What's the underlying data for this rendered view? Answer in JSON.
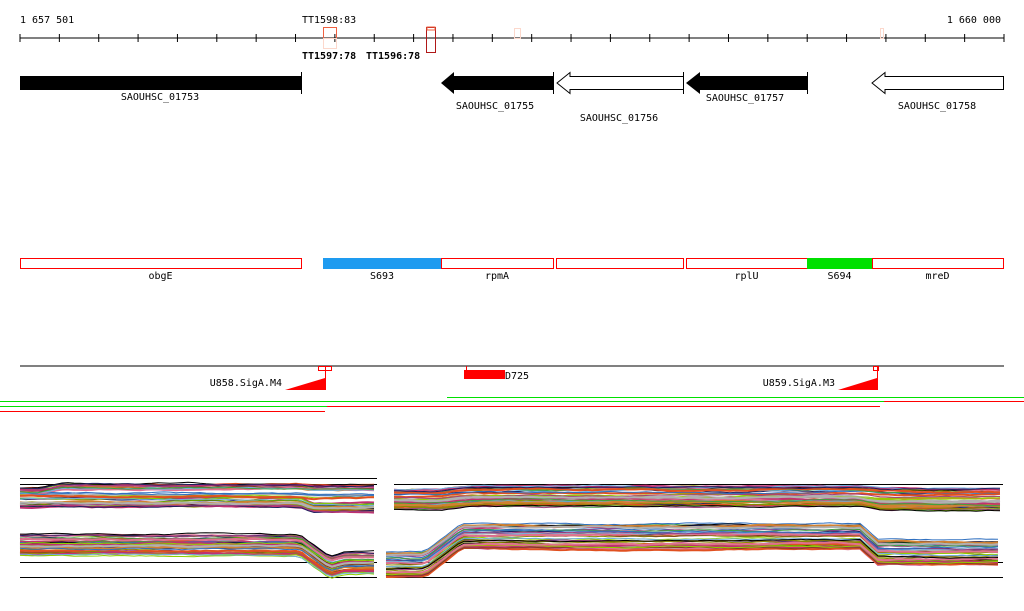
{
  "ruler": {
    "start": "1 657 501",
    "end": "1 660 000",
    "marker_top": "TT1598:83",
    "marker_bottom_a": "TT1597:78",
    "marker_bottom_b": "TT1596:78"
  },
  "genes": [
    {
      "name": "SAOUHSC_01753",
      "strand": "none",
      "fill": "black"
    },
    {
      "name": "SAOUHSC_01755",
      "strand": "minus",
      "fill": "black"
    },
    {
      "name": "SAOUHSC_01756",
      "strand": "minus",
      "fill": "white"
    },
    {
      "name": "SAOUHSC_01757",
      "strand": "minus",
      "fill": "black"
    },
    {
      "name": "SAOUHSC_01758",
      "strand": "minus",
      "fill": "white"
    }
  ],
  "segments": [
    {
      "label": "obgE",
      "color": "#ffffff"
    },
    {
      "label": "S693",
      "color": "#1e9bf0"
    },
    {
      "label": "rpmA",
      "color": "#ffffff"
    },
    {
      "label": "",
      "color": "#ffffff"
    },
    {
      "label": "rplU",
      "color": "#ffffff"
    },
    {
      "label": "S694",
      "color": "#00e000"
    },
    {
      "label": "mreD",
      "color": "#ffffff"
    }
  ],
  "promoters": [
    {
      "label": "U858.SigA.M4"
    },
    {
      "label": "U859.SigA.M3"
    }
  ],
  "terminator": {
    "label": "D725"
  },
  "colors": {
    "accent_red": "#ff0000",
    "green": "#00e000",
    "blue": "#1e9bf0"
  },
  "profile_palette": [
    "#e05020",
    "#8a8a00",
    "#6aa000",
    "#c03070",
    "#202060",
    "#70b0e0",
    "#d08030",
    "#a04080",
    "#40a040",
    "#b0b0b0",
    "#804020",
    "#90d000",
    "#e07090",
    "#3070c0",
    "#000000"
  ]
}
